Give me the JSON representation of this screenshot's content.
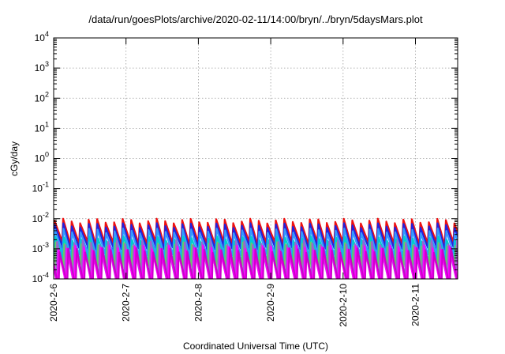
{
  "chart_data": {
    "type": "line",
    "title": "/data/run/goesPlots/archive/2020-02-11/14:00/bryn/../bryn/5daysMars.plot",
    "xlabel": "Coordinated Universal Time (UTC)",
    "ylabel": "cGy/day",
    "yscale": "log",
    "ylim": [
      0.0001,
      10000
    ],
    "yticks": [
      {
        "value": 0.0001,
        "base": "10",
        "exp": "-4"
      },
      {
        "value": 0.001,
        "base": "10",
        "exp": "-3"
      },
      {
        "value": 0.01,
        "base": "10",
        "exp": "-2"
      },
      {
        "value": 0.1,
        "base": "10",
        "exp": "-1"
      },
      {
        "value": 1,
        "base": "10",
        "exp": "0"
      },
      {
        "value": 10,
        "base": "10",
        "exp": "1"
      },
      {
        "value": 100,
        "base": "10",
        "exp": "2"
      },
      {
        "value": 1000,
        "base": "10",
        "exp": "3"
      },
      {
        "value": 10000,
        "base": "10",
        "exp": "4"
      }
    ],
    "xlim": [
      "2020-02-06T00:00",
      "2020-02-11T14:00"
    ],
    "xticks": [
      "2020-2-6",
      "2020-2-7",
      "2020-2-8",
      "2020-2-9",
      "2020-2-10",
      "2020-2-11"
    ],
    "grid": true,
    "pattern": "sawtooth",
    "teeth": 48,
    "series": [
      {
        "color": "#ee1111",
        "peak": 0.0085,
        "trough": 0.0016,
        "phase": 0.0
      },
      {
        "color": "#2222dd",
        "peak": 0.006,
        "trough": 0.0011,
        "phase": 0.02
      },
      {
        "color": "#3399ff",
        "peak": 0.004,
        "trough": 0.00065,
        "phase": 0.05
      },
      {
        "color": "#00cccc",
        "peak": 0.0022,
        "trough": 0.00042,
        "phase": 0.1
      },
      {
        "color": "#66cc66",
        "peak": 0.0014,
        "trough": 0.00028,
        "phase": 0.14
      },
      {
        "color": "#9966cc",
        "peak": 0.0016,
        "trough": 0.00011,
        "phase": 0.3
      },
      {
        "color": "#ff00ff",
        "peak": 0.0011,
        "trough": 7e-05,
        "phase": 0.45
      },
      {
        "color": "#cc00cc",
        "peak": 0.0009,
        "trough": 6e-05,
        "phase": 0.6
      }
    ]
  }
}
